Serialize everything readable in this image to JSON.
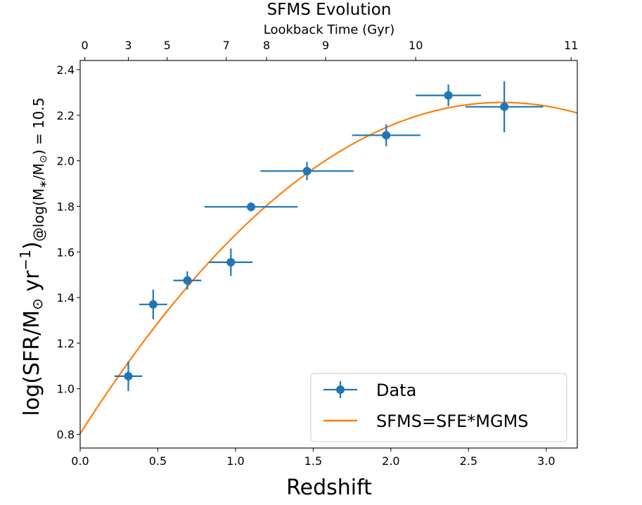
{
  "chart_data": {
    "type": "scatter",
    "title": "SFMS Evolution",
    "xlabel": "Redshift",
    "ylabel_main": "log(SFR/M",
    "ylabel_sun": "⊙",
    "ylabel_unit": " yr",
    "ylabel_exp": "−1",
    "ylabel_paren": ")",
    "ylabel_sub_pre": "@log(M",
    "ylabel_sub_star": "∗",
    "ylabel_sub_mid": "/M",
    "ylabel_sub_sun": "⊙",
    "ylabel_sub_post": ") = 10.5",
    "top_axis_label": "Lookback Time (Gyr)",
    "xlim": [
      0.0,
      3.2
    ],
    "ylim": [
      0.74,
      2.44
    ],
    "xticks": [
      {
        "value": 0.0,
        "label": "0.0"
      },
      {
        "value": 0.5,
        "label": "0.5"
      },
      {
        "value": 1.0,
        "label": "1.0"
      },
      {
        "value": 1.5,
        "label": "1.5"
      },
      {
        "value": 2.0,
        "label": "2.0"
      },
      {
        "value": 2.5,
        "label": "2.5"
      },
      {
        "value": 3.0,
        "label": "3.0"
      }
    ],
    "yticks": [
      {
        "value": 0.8,
        "label": "0.8"
      },
      {
        "value": 1.0,
        "label": "1.0"
      },
      {
        "value": 1.2,
        "label": "1.2"
      },
      {
        "value": 1.4,
        "label": "1.4"
      },
      {
        "value": 1.6,
        "label": "1.6"
      },
      {
        "value": 1.8,
        "label": "1.8"
      },
      {
        "value": 2.0,
        "label": "2.0"
      },
      {
        "value": 2.2,
        "label": "2.2"
      },
      {
        "value": 2.4,
        "label": "2.4"
      }
    ],
    "top_ticks": [
      {
        "z": 0.03,
        "label": "0"
      },
      {
        "z": 0.31,
        "label": "3"
      },
      {
        "z": 0.56,
        "label": "5"
      },
      {
        "z": 0.94,
        "label": "7"
      },
      {
        "z": 1.2,
        "label": "8"
      },
      {
        "z": 1.58,
        "label": "9"
      },
      {
        "z": 2.16,
        "label": "10"
      },
      {
        "z": 3.16,
        "label": "11"
      }
    ],
    "series": [
      {
        "name": "Data",
        "color": "#1f77b4",
        "points": [
          {
            "x": 0.31,
            "y": 1.055,
            "xerr": 0.09,
            "yerr": 0.065
          },
          {
            "x": 0.47,
            "y": 1.37,
            "xerr": 0.09,
            "yerr": 0.065
          },
          {
            "x": 0.69,
            "y": 1.475,
            "xerr": 0.09,
            "yerr": 0.04
          },
          {
            "x": 0.97,
            "y": 1.555,
            "xerr": 0.14,
            "yerr": 0.06
          },
          {
            "x": 1.1,
            "y": 1.798,
            "xerr": 0.3,
            "yerr": 0.02
          },
          {
            "x": 1.46,
            "y": 1.955,
            "xerr": 0.3,
            "yerr": 0.04
          },
          {
            "x": 1.97,
            "y": 2.112,
            "xerr": 0.22,
            "yerr": 0.048
          },
          {
            "x": 2.37,
            "y": 2.287,
            "xerr": 0.21,
            "yerr": 0.048
          },
          {
            "x": 2.73,
            "y": 2.237,
            "xerr": 0.25,
            "yerr": 0.112
          }
        ]
      },
      {
        "name": "SFMS=SFE*MGMS",
        "color": "#ff7f0e",
        "type": "line",
        "curve": {
          "a": 0.803,
          "b": 1.07,
          "c": -0.197
        }
      }
    ],
    "legend": {
      "position": "lower-right",
      "entries": [
        "Data",
        "SFMS=SFE*MGMS"
      ]
    }
  }
}
